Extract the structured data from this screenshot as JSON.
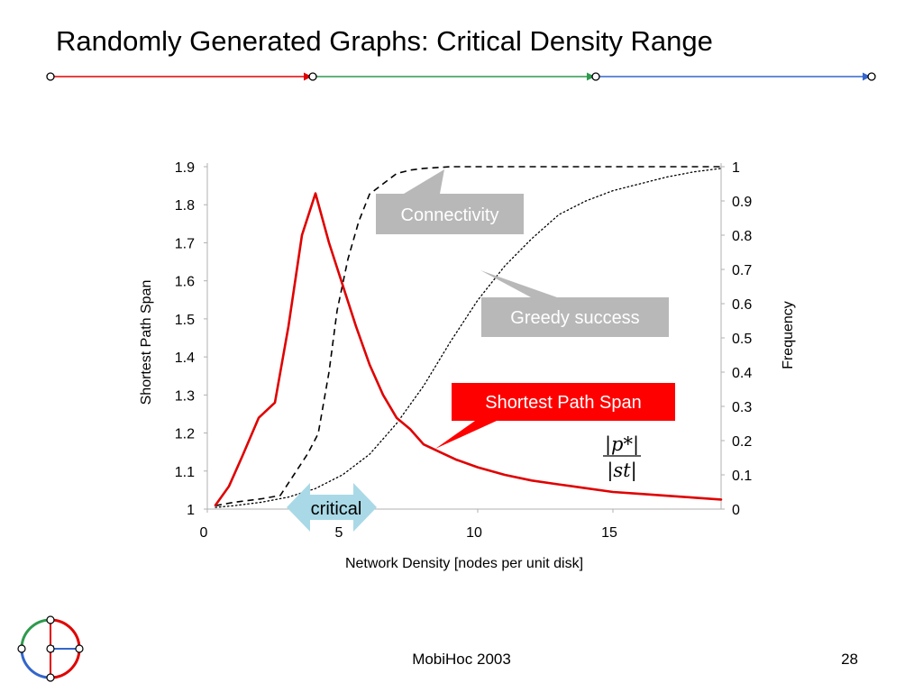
{
  "slide": {
    "title": "Randomly Generated Graphs: Critical Density Range",
    "footer": "MobiHoc 2003",
    "page_number": "28"
  },
  "header_line_colors": [
    "#e00000",
    "#2e9a4e",
    "#3366cc"
  ],
  "callouts": {
    "connectivity": "Connectivity",
    "greedy": "Greedy success",
    "span": "Shortest Path Span",
    "critical": "critical",
    "formula_numerator": "|p*|",
    "formula_denominator": "|st|"
  },
  "colors": {
    "span_line": "#e00000",
    "callout_gray": "#b8b8b8",
    "callout_red": "#ff0000",
    "critical_arrow": "#a9d9e6"
  },
  "chart_data": {
    "type": "line",
    "xlabel": "Network Density [nodes per unit disk]",
    "ylabel_left": "Shortest Path Span",
    "ylabel_right": "Frequency",
    "xlim": [
      0,
      19
    ],
    "ylim_left": [
      1,
      1.9
    ],
    "ylim_right": [
      0,
      1
    ],
    "xticks": [
      0,
      5,
      10,
      15
    ],
    "yticks_left": [
      1,
      1.1,
      1.2,
      1.3,
      1.4,
      1.5,
      1.6,
      1.7,
      1.8,
      1.9
    ],
    "yticks_right": [
      0,
      0.1,
      0.2,
      0.3,
      0.4,
      0.5,
      0.6,
      0.7,
      0.8,
      0.9,
      1
    ],
    "series": [
      {
        "name": "Shortest Path Span",
        "axis": "left",
        "style": "solid",
        "x": [
          0.3,
          0.8,
          1.3,
          1.9,
          2.5,
          3.0,
          3.5,
          4.0,
          4.5,
          5.0,
          5.5,
          6.0,
          6.5,
          7.0,
          7.5,
          8.0,
          8.6,
          9.2,
          10.0,
          11.0,
          12.0,
          13.0,
          14.0,
          15.0,
          16.0,
          17.0,
          18.0,
          19.0
        ],
        "y": [
          1.01,
          1.06,
          1.14,
          1.24,
          1.28,
          1.48,
          1.72,
          1.83,
          1.7,
          1.59,
          1.48,
          1.38,
          1.3,
          1.24,
          1.21,
          1.17,
          1.15,
          1.13,
          1.11,
          1.09,
          1.075,
          1.065,
          1.055,
          1.045,
          1.04,
          1.035,
          1.03,
          1.025
        ]
      },
      {
        "name": "Connectivity",
        "axis": "right",
        "style": "dashed",
        "x": [
          0.3,
          1.0,
          2.0,
          2.7,
          3.2,
          3.7,
          4.1,
          4.5,
          4.8,
          5.2,
          5.6,
          6.0,
          6.5,
          7.0,
          7.5,
          8.0,
          9.0,
          10.0,
          12.0,
          15.0,
          19.0
        ],
        "y": [
          0.01,
          0.02,
          0.03,
          0.04,
          0.1,
          0.16,
          0.22,
          0.4,
          0.58,
          0.73,
          0.84,
          0.92,
          0.95,
          0.98,
          0.99,
          0.995,
          1.0,
          1.0,
          1.0,
          1.0,
          1.0
        ]
      },
      {
        "name": "Greedy success",
        "axis": "right",
        "style": "dotted",
        "x": [
          0.3,
          1.0,
          2.0,
          3.0,
          4.0,
          5.0,
          6.0,
          7.0,
          8.0,
          9.0,
          10.0,
          11.0,
          12.0,
          13.0,
          14.0,
          15.0,
          16.0,
          17.0,
          18.0,
          19.0
        ],
        "y": [
          0.005,
          0.01,
          0.02,
          0.035,
          0.06,
          0.1,
          0.16,
          0.25,
          0.36,
          0.49,
          0.61,
          0.71,
          0.79,
          0.86,
          0.9,
          0.93,
          0.95,
          0.97,
          0.985,
          0.995
        ]
      }
    ]
  }
}
